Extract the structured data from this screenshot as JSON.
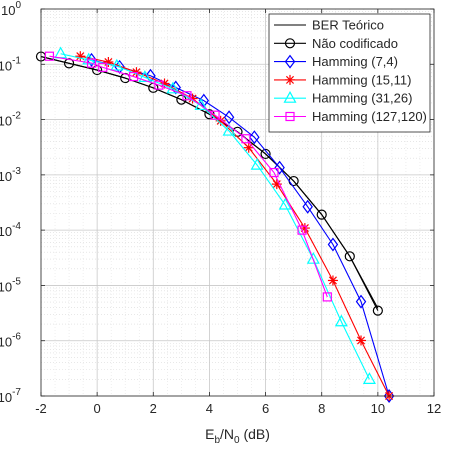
{
  "chart_data": {
    "type": "line",
    "title": "",
    "xlabel": "E_b/N_0 (dB)",
    "xlabel_parts": {
      "base": "E",
      "sub1": "b",
      "mid": "/N",
      "sub2": "0",
      "unit": " (dB)"
    },
    "ylabel": "",
    "xlim": [
      -2,
      12
    ],
    "ylim": [
      1e-07,
      1
    ],
    "yscale": "log",
    "grid": true,
    "legend_position": "top-right",
    "x_ticks": [
      -2,
      0,
      2,
      4,
      6,
      8,
      10,
      12
    ],
    "x_tick_labels": [
      "-2",
      "0",
      "2",
      "4",
      "6",
      "8",
      "10",
      "12"
    ],
    "y_ticks": [
      {
        "value": 1,
        "base": "10",
        "exp": "0"
      },
      {
        "value": 0.1,
        "base": "10",
        "exp": "-1"
      },
      {
        "value": 0.01,
        "base": "10",
        "exp": "-2"
      },
      {
        "value": 0.001,
        "base": "10",
        "exp": "-3"
      },
      {
        "value": 0.0001,
        "base": "10",
        "exp": "-4"
      },
      {
        "value": 1e-05,
        "base": "10",
        "exp": "-5"
      },
      {
        "value": 1e-06,
        "base": "10",
        "exp": "-6"
      },
      {
        "value": 1e-07,
        "base": "10",
        "exp": "-7"
      }
    ],
    "series": [
      {
        "name": "BER Teórico",
        "color": "#000000",
        "marker": "none",
        "x": [
          -2,
          -1,
          0,
          1,
          2,
          3,
          4,
          5,
          6,
          7,
          8,
          9,
          10
        ],
        "y": [
          0.138,
          0.104,
          0.0786,
          0.0563,
          0.0375,
          0.0229,
          0.0125,
          0.006,
          0.00239,
          0.000773,
          0.000191,
          3.36e-05,
          3.87e-06
        ]
      },
      {
        "name": "Não codificado",
        "color": "#000000",
        "marker": "circle",
        "x": [
          -2,
          -1,
          0,
          1,
          2,
          3,
          4,
          5,
          6,
          7,
          8,
          9,
          10
        ],
        "y": [
          0.138,
          0.104,
          0.0786,
          0.0563,
          0.0375,
          0.0229,
          0.0125,
          0.006,
          0.00239,
          0.000773,
          0.000191,
          3.36e-05,
          3.5e-06
        ]
      },
      {
        "name": "Hamming (7,4)",
        "color": "#0000ff",
        "marker": "diamond",
        "x": [
          -0.2,
          0.8,
          1.9,
          2.8,
          3.8,
          4.7,
          5.6,
          6.5,
          7.5,
          8.4,
          9.4,
          10.4
        ],
        "y": [
          0.12,
          0.09,
          0.062,
          0.038,
          0.022,
          0.011,
          0.0048,
          0.00135,
          0.000265,
          5.5e-05,
          5.1e-06,
          1e-07
        ]
      },
      {
        "name": "Hamming (15,11)",
        "color": "#ff0000",
        "marker": "asterisk",
        "x": [
          -0.6,
          0.4,
          1.4,
          2.4,
          3.4,
          4.4,
          5.4,
          6.4,
          7.4,
          8.4,
          9.4,
          10.4
        ],
        "y": [
          0.14,
          0.11,
          0.072,
          0.045,
          0.024,
          0.0095,
          0.0031,
          0.00068,
          0.000109,
          1.23e-05,
          1.01e-06,
          1e-07
        ]
      },
      {
        "name": "Hamming (31,26)",
        "color": "#00ffff",
        "marker": "triangle",
        "x": [
          -1.3,
          -0.3,
          0.7,
          1.7,
          2.7,
          3.7,
          4.7,
          5.7,
          6.7,
          7.7,
          8.7,
          9.7
        ],
        "y": [
          0.155,
          0.12,
          0.093,
          0.058,
          0.036,
          0.018,
          0.0062,
          0.0015,
          0.000285,
          2.98e-05,
          2.2e-06,
          2e-07
        ]
      },
      {
        "name": "Hamming (127,120)",
        "color": "#ff00ff",
        "marker": "square",
        "x": [
          -1.7,
          -0.2,
          0.2,
          1.3,
          2.2,
          3.2,
          4.2,
          5.3,
          6.3,
          7.3,
          8.2
        ],
        "y": [
          0.14,
          0.105,
          0.088,
          0.06,
          0.042,
          0.027,
          0.012,
          0.0045,
          0.0011,
          0.0001,
          6.2e-06
        ]
      }
    ]
  }
}
